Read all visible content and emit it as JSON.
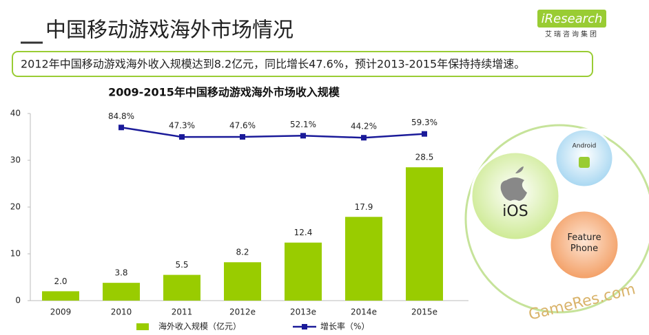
{
  "header": {
    "title": "中国移动游戏海外市场情况",
    "summary": "2012年中国移动游戏海外收入规模达到8.2亿元，同比增长47.6%，预计2013-2015年保持持续增速。",
    "logo": "iResearch",
    "logo_sub": "艾瑞咨询集团"
  },
  "chart_data": {
    "type": "bar",
    "title": "2009-2015年中国移动游戏海外市场收入规模",
    "categories": [
      "2009",
      "2010",
      "2011",
      "2012e",
      "2013e",
      "2014e",
      "2015e"
    ],
    "series": [
      {
        "name": "海外收入规模（亿元）",
        "type": "bar",
        "color": "#99cc00",
        "values": [
          2.0,
          3.8,
          5.5,
          8.2,
          12.4,
          17.9,
          28.5
        ],
        "value_labels": [
          "2.0",
          "3.8",
          "5.5",
          "8.2",
          "12.4",
          "17.9",
          "28.5"
        ]
      },
      {
        "name": "增长率（%）",
        "type": "line",
        "axis": "y2",
        "color": "#1a1a99",
        "values": [
          null,
          84.8,
          47.3,
          47.6,
          52.1,
          44.2,
          59.3
        ],
        "value_labels": [
          null,
          "84.8%",
          "47.3%",
          "47.6%",
          "52.1%",
          "44.2%",
          "59.3%"
        ]
      }
    ],
    "ylim": [
      0,
      40
    ],
    "yticks": [
      0,
      10,
      20,
      30,
      40
    ],
    "y2lim": [
      -600,
      140
    ],
    "legend": "bottom"
  },
  "diagram": {
    "circles": [
      "iOS",
      "Android",
      "Feature Phone"
    ]
  },
  "watermark": "GameRes.com"
}
